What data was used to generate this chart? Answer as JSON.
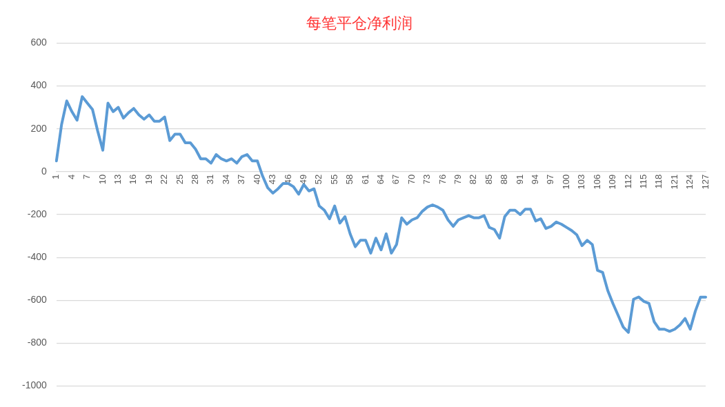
{
  "chart_data": {
    "type": "line",
    "title": "每笔平仓净利润",
    "categories": [
      "1",
      null,
      null,
      "4",
      null,
      null,
      "7",
      null,
      null,
      "10",
      null,
      null,
      "13",
      null,
      null,
      "16",
      null,
      null,
      "19",
      null,
      null,
      "22",
      null,
      null,
      "25",
      null,
      null,
      "28",
      null,
      null,
      "31",
      null,
      null,
      "34",
      null,
      null,
      "37",
      null,
      null,
      "40",
      null,
      null,
      "43",
      null,
      null,
      "46",
      null,
      null,
      "49",
      null,
      null,
      "52",
      null,
      null,
      "55",
      null,
      null,
      "58",
      null,
      null,
      "61",
      null,
      null,
      "64",
      null,
      null,
      "67",
      null,
      null,
      "70",
      null,
      null,
      "73",
      null,
      null,
      "76",
      null,
      null,
      "79",
      null,
      null,
      "82",
      null,
      null,
      "85",
      null,
      null,
      "88",
      null,
      null,
      "91",
      null,
      null,
      "94",
      null,
      null,
      "97",
      null,
      null,
      "100",
      null,
      null,
      "103",
      null,
      null,
      "106",
      null,
      null,
      "109",
      null,
      null,
      "112",
      null,
      null,
      "115",
      null,
      null,
      "118",
      null,
      null,
      "121",
      null,
      null,
      "124",
      null,
      null,
      "127"
    ],
    "series": [
      {
        "color": "#5b9bd5",
        "values": [
          50,
          220,
          330,
          280,
          240,
          350,
          320,
          290,
          190,
          100,
          320,
          280,
          300,
          250,
          275,
          295,
          265,
          245,
          265,
          235,
          235,
          255,
          145,
          175,
          175,
          135,
          135,
          105,
          60,
          60,
          40,
          80,
          60,
          50,
          60,
          40,
          70,
          80,
          50,
          50,
          -20,
          -75,
          -100,
          -80,
          -55,
          -55,
          -70,
          -105,
          -60,
          -90,
          -80,
          -160,
          -180,
          -220,
          -160,
          -240,
          -210,
          -290,
          -350,
          -320,
          -320,
          -380,
          -310,
          -365,
          -290,
          -380,
          -340,
          -215,
          -245,
          -225,
          -215,
          -185,
          -165,
          -155,
          -165,
          -180,
          -225,
          -255,
          -225,
          -215,
          -205,
          -215,
          -215,
          -205,
          -260,
          -270,
          -310,
          -210,
          -180,
          -180,
          -200,
          -175,
          -175,
          -230,
          -220,
          -265,
          -255,
          -235,
          -245,
          -260,
          -275,
          -295,
          -345,
          -320,
          -340,
          -460,
          -470,
          -555,
          -615,
          -670,
          -725,
          -750,
          -595,
          -585,
          -605,
          -615,
          -700,
          -735,
          -735,
          -745,
          -735,
          -715,
          -685,
          -735,
          -650,
          -585,
          -585
        ]
      }
    ],
    "ylim": [
      -1000,
      600
    ],
    "yticks": [
      -1000,
      -800,
      -600,
      -400,
      -200,
      0,
      200,
      400,
      600
    ],
    "grid": "y",
    "legend": false,
    "marker": "none",
    "line_style": "solid"
  }
}
